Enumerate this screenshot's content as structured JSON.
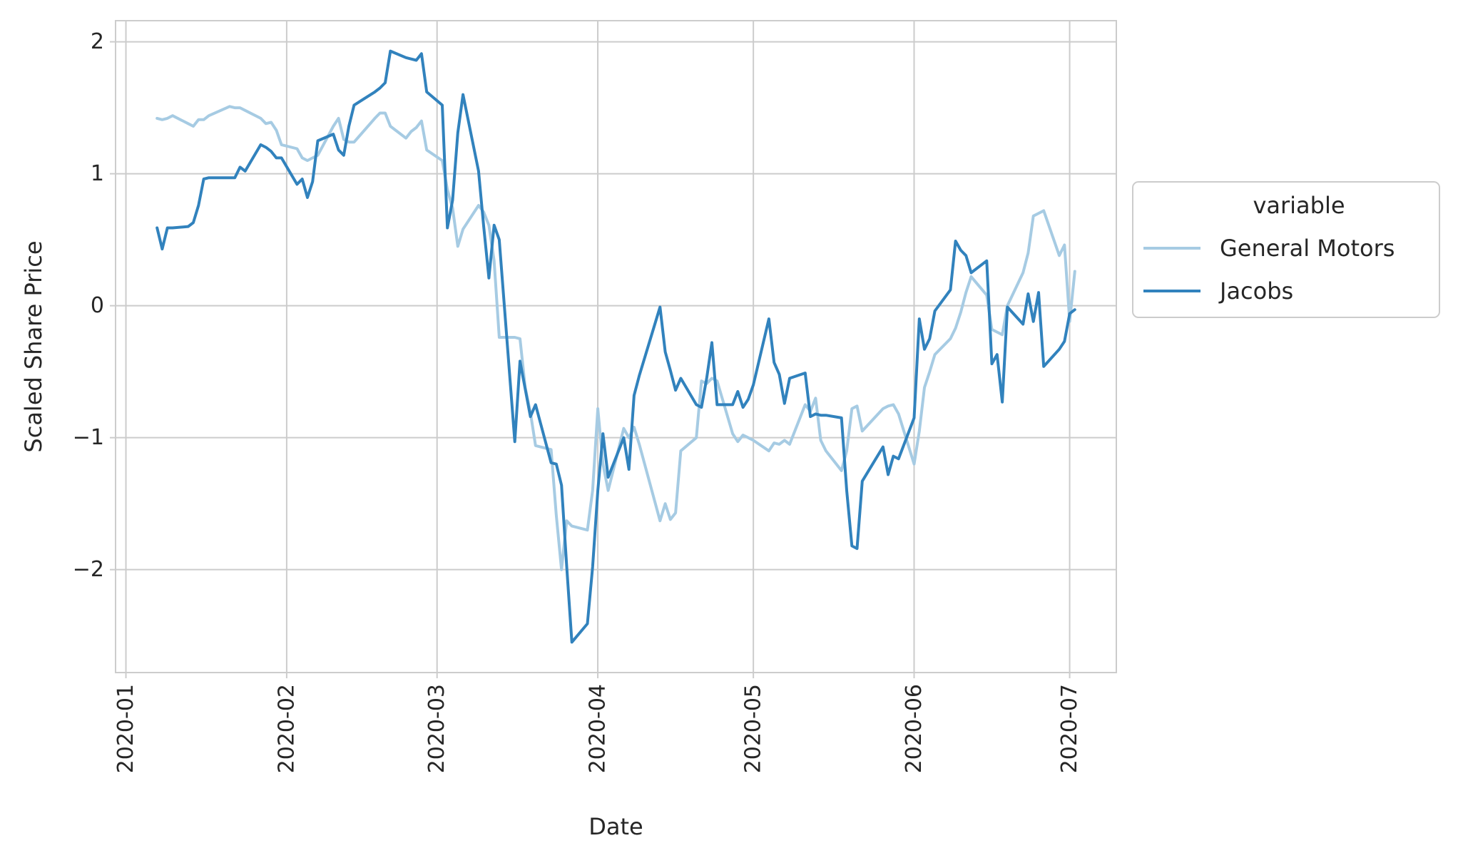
{
  "chart_data": {
    "type": "line",
    "xlabel": "Date",
    "ylabel": "Scaled Share Price",
    "x_ticks": [
      "2020-01",
      "2020-02",
      "2020-03",
      "2020-04",
      "2020-05",
      "2020-06",
      "2020-07"
    ],
    "y_ticks": [
      "−2",
      "−1",
      "0",
      "1",
      "2"
    ],
    "xlim": [
      "2019-12-30",
      "2020-07-10"
    ],
    "ylim": [
      -2.78,
      2.16
    ],
    "grid": true,
    "legend": {
      "title": "variable",
      "placement": "right-outside",
      "entries": [
        "General Motors",
        "Jacobs"
      ]
    },
    "series": [
      {
        "name": "General Motors",
        "color": "#a6cbe3",
        "points": [
          [
            "2020-01-07",
            1.42
          ],
          [
            "2020-01-08",
            1.41
          ],
          [
            "2020-01-09",
            1.42
          ],
          [
            "2020-01-10",
            1.44
          ],
          [
            "2020-01-13",
            1.38
          ],
          [
            "2020-01-14",
            1.36
          ],
          [
            "2020-01-15",
            1.41
          ],
          [
            "2020-01-16",
            1.41
          ],
          [
            "2020-01-17",
            1.44
          ],
          [
            "2020-01-21",
            1.51
          ],
          [
            "2020-01-22",
            1.5
          ],
          [
            "2020-01-23",
            1.5
          ],
          [
            "2020-01-24",
            1.48
          ],
          [
            "2020-01-27",
            1.42
          ],
          [
            "2020-01-28",
            1.38
          ],
          [
            "2020-01-29",
            1.39
          ],
          [
            "2020-01-30",
            1.33
          ],
          [
            "2020-01-31",
            1.22
          ],
          [
            "2020-02-03",
            1.19
          ],
          [
            "2020-02-04",
            1.12
          ],
          [
            "2020-02-05",
            1.1
          ],
          [
            "2020-02-06",
            1.12
          ],
          [
            "2020-02-07",
            1.14
          ],
          [
            "2020-02-10",
            1.36
          ],
          [
            "2020-02-11",
            1.42
          ],
          [
            "2020-02-12",
            1.26
          ],
          [
            "2020-02-13",
            1.24
          ],
          [
            "2020-02-14",
            1.24
          ],
          [
            "2020-02-18",
            1.42
          ],
          [
            "2020-02-19",
            1.46
          ],
          [
            "2020-02-20",
            1.46
          ],
          [
            "2020-02-21",
            1.36
          ],
          [
            "2020-02-24",
            1.27
          ],
          [
            "2020-02-25",
            1.32
          ],
          [
            "2020-02-26",
            1.35
          ],
          [
            "2020-02-27",
            1.4
          ],
          [
            "2020-02-28",
            1.18
          ],
          [
            "2020-03-02",
            1.1
          ],
          [
            "2020-03-03",
            0.88
          ],
          [
            "2020-03-04",
            0.74
          ],
          [
            "2020-03-05",
            0.45
          ],
          [
            "2020-03-06",
            0.58
          ],
          [
            "2020-03-09",
            0.76
          ],
          [
            "2020-03-10",
            0.71
          ],
          [
            "2020-03-11",
            0.61
          ],
          [
            "2020-03-12",
            0.34
          ],
          [
            "2020-03-13",
            -0.24
          ],
          [
            "2020-03-16",
            -0.24
          ],
          [
            "2020-03-17",
            -0.25
          ],
          [
            "2020-03-18",
            -0.62
          ],
          [
            "2020-03-19",
            -0.81
          ],
          [
            "2020-03-20",
            -1.06
          ],
          [
            "2020-03-23",
            -1.09
          ],
          [
            "2020-03-24",
            -1.59
          ],
          [
            "2020-03-25",
            -2.0
          ],
          [
            "2020-03-26",
            -1.63
          ],
          [
            "2020-03-27",
            -1.67
          ],
          [
            "2020-03-30",
            -1.7
          ],
          [
            "2020-03-31",
            -1.4
          ],
          [
            "2020-04-01",
            -0.78
          ],
          [
            "2020-04-02",
            -1.2
          ],
          [
            "2020-04-03",
            -1.4
          ],
          [
            "2020-04-06",
            -0.93
          ],
          [
            "2020-04-07",
            -1.0
          ],
          [
            "2020-04-08",
            -0.92
          ],
          [
            "2020-04-09",
            -1.05
          ],
          [
            "2020-04-13",
            -1.63
          ],
          [
            "2020-04-14",
            -1.5
          ],
          [
            "2020-04-15",
            -1.62
          ],
          [
            "2020-04-16",
            -1.57
          ],
          [
            "2020-04-17",
            -1.1
          ],
          [
            "2020-04-20",
            -1.0
          ],
          [
            "2020-04-21",
            -0.57
          ],
          [
            "2020-04-22",
            -0.59
          ],
          [
            "2020-04-23",
            -0.55
          ],
          [
            "2020-04-24",
            -0.57
          ],
          [
            "2020-04-27",
            -0.97
          ],
          [
            "2020-04-28",
            -1.03
          ],
          [
            "2020-04-29",
            -0.98
          ],
          [
            "2020-04-30",
            -1.0
          ],
          [
            "2020-05-01",
            -1.02
          ],
          [
            "2020-05-04",
            -1.1
          ],
          [
            "2020-05-05",
            -1.04
          ],
          [
            "2020-05-06",
            -1.05
          ],
          [
            "2020-05-07",
            -1.02
          ],
          [
            "2020-05-08",
            -1.05
          ],
          [
            "2020-05-11",
            -0.75
          ],
          [
            "2020-05-12",
            -0.8
          ],
          [
            "2020-05-13",
            -0.7
          ],
          [
            "2020-05-14",
            -1.02
          ],
          [
            "2020-05-15",
            -1.1
          ],
          [
            "2020-05-18",
            -1.25
          ],
          [
            "2020-05-19",
            -1.1
          ],
          [
            "2020-05-20",
            -0.78
          ],
          [
            "2020-05-21",
            -0.76
          ],
          [
            "2020-05-22",
            -0.95
          ],
          [
            "2020-05-26",
            -0.78
          ],
          [
            "2020-05-27",
            -0.76
          ],
          [
            "2020-05-28",
            -0.75
          ],
          [
            "2020-05-29",
            -0.82
          ],
          [
            "2020-06-01",
            -1.2
          ],
          [
            "2020-06-02",
            -0.95
          ],
          [
            "2020-06-03",
            -0.62
          ],
          [
            "2020-06-04",
            -0.5
          ],
          [
            "2020-06-05",
            -0.37
          ],
          [
            "2020-06-08",
            -0.25
          ],
          [
            "2020-06-09",
            -0.17
          ],
          [
            "2020-06-10",
            -0.05
          ],
          [
            "2020-06-11",
            0.1
          ],
          [
            "2020-06-12",
            0.22
          ],
          [
            "2020-06-15",
            0.08
          ],
          [
            "2020-06-16",
            -0.18
          ],
          [
            "2020-06-17",
            -0.2
          ],
          [
            "2020-06-18",
            -0.22
          ],
          [
            "2020-06-19",
            0.0
          ],
          [
            "2020-06-22",
            0.25
          ],
          [
            "2020-06-23",
            0.4
          ],
          [
            "2020-06-24",
            0.68
          ],
          [
            "2020-06-25",
            0.7
          ],
          [
            "2020-06-26",
            0.72
          ],
          [
            "2020-06-29",
            0.38
          ],
          [
            "2020-06-30",
            0.46
          ],
          [
            "2020-07-01",
            -0.12
          ],
          [
            "2020-07-02",
            0.26
          ]
        ]
      },
      {
        "name": "Jacobs",
        "color": "#3182bd",
        "points": [
          [
            "2020-01-07",
            0.59
          ],
          [
            "2020-01-08",
            0.43
          ],
          [
            "2020-01-09",
            0.59
          ],
          [
            "2020-01-10",
            0.59
          ],
          [
            "2020-01-13",
            0.6
          ],
          [
            "2020-01-14",
            0.63
          ],
          [
            "2020-01-15",
            0.76
          ],
          [
            "2020-01-16",
            0.96
          ],
          [
            "2020-01-17",
            0.97
          ],
          [
            "2020-01-21",
            0.97
          ],
          [
            "2020-01-22",
            0.97
          ],
          [
            "2020-01-23",
            1.05
          ],
          [
            "2020-01-24",
            1.02
          ],
          [
            "2020-01-27",
            1.22
          ],
          [
            "2020-01-28",
            1.2
          ],
          [
            "2020-01-29",
            1.17
          ],
          [
            "2020-01-30",
            1.12
          ],
          [
            "2020-01-31",
            1.12
          ],
          [
            "2020-02-03",
            0.92
          ],
          [
            "2020-02-04",
            0.96
          ],
          [
            "2020-02-05",
            0.82
          ],
          [
            "2020-02-06",
            0.94
          ],
          [
            "2020-02-07",
            1.25
          ],
          [
            "2020-02-10",
            1.3
          ],
          [
            "2020-02-11",
            1.18
          ],
          [
            "2020-02-12",
            1.14
          ],
          [
            "2020-02-13",
            1.36
          ],
          [
            "2020-02-14",
            1.52
          ],
          [
            "2020-02-18",
            1.62
          ],
          [
            "2020-02-19",
            1.65
          ],
          [
            "2020-02-20",
            1.69
          ],
          [
            "2020-02-21",
            1.93
          ],
          [
            "2020-02-24",
            1.88
          ],
          [
            "2020-02-25",
            1.87
          ],
          [
            "2020-02-26",
            1.86
          ],
          [
            "2020-02-27",
            1.91
          ],
          [
            "2020-02-28",
            1.62
          ],
          [
            "2020-03-02",
            1.52
          ],
          [
            "2020-03-03",
            0.59
          ],
          [
            "2020-03-04",
            0.8
          ],
          [
            "2020-03-05",
            1.31
          ],
          [
            "2020-03-06",
            1.6
          ],
          [
            "2020-03-09",
            1.02
          ],
          [
            "2020-03-10",
            0.6
          ],
          [
            "2020-03-11",
            0.21
          ],
          [
            "2020-03-12",
            0.61
          ],
          [
            "2020-03-13",
            0.5
          ],
          [
            "2020-03-16",
            -1.03
          ],
          [
            "2020-03-17",
            -0.42
          ],
          [
            "2020-03-18",
            -0.63
          ],
          [
            "2020-03-19",
            -0.84
          ],
          [
            "2020-03-20",
            -0.75
          ],
          [
            "2020-03-23",
            -1.19
          ],
          [
            "2020-03-24",
            -1.2
          ],
          [
            "2020-03-25",
            -1.36
          ],
          [
            "2020-03-26",
            -1.97
          ],
          [
            "2020-03-27",
            -2.55
          ],
          [
            "2020-03-30",
            -2.41
          ],
          [
            "2020-03-31",
            -1.98
          ],
          [
            "2020-04-01",
            -1.4
          ],
          [
            "2020-04-02",
            -0.97
          ],
          [
            "2020-04-03",
            -1.3
          ],
          [
            "2020-04-06",
            -1.0
          ],
          [
            "2020-04-07",
            -1.24
          ],
          [
            "2020-04-08",
            -0.68
          ],
          [
            "2020-04-09",
            -0.53
          ],
          [
            "2020-04-13",
            -0.01
          ],
          [
            "2020-04-14",
            -0.35
          ],
          [
            "2020-04-15",
            -0.49
          ],
          [
            "2020-04-16",
            -0.64
          ],
          [
            "2020-04-17",
            -0.55
          ],
          [
            "2020-04-20",
            -0.75
          ],
          [
            "2020-04-21",
            -0.77
          ],
          [
            "2020-04-22",
            -0.55
          ],
          [
            "2020-04-23",
            -0.28
          ],
          [
            "2020-04-24",
            -0.75
          ],
          [
            "2020-04-27",
            -0.75
          ],
          [
            "2020-04-28",
            -0.65
          ],
          [
            "2020-04-29",
            -0.77
          ],
          [
            "2020-04-30",
            -0.71
          ],
          [
            "2020-05-01",
            -0.6
          ],
          [
            "2020-05-04",
            -0.1
          ],
          [
            "2020-05-05",
            -0.43
          ],
          [
            "2020-05-06",
            -0.52
          ],
          [
            "2020-05-07",
            -0.74
          ],
          [
            "2020-05-08",
            -0.55
          ],
          [
            "2020-05-11",
            -0.51
          ],
          [
            "2020-05-12",
            -0.84
          ],
          [
            "2020-05-13",
            -0.82
          ],
          [
            "2020-05-14",
            -0.83
          ],
          [
            "2020-05-15",
            -0.83
          ],
          [
            "2020-05-18",
            -0.85
          ],
          [
            "2020-05-19",
            -1.4
          ],
          [
            "2020-05-20",
            -1.82
          ],
          [
            "2020-05-21",
            -1.84
          ],
          [
            "2020-05-22",
            -1.33
          ],
          [
            "2020-05-26",
            -1.07
          ],
          [
            "2020-05-27",
            -1.28
          ],
          [
            "2020-05-28",
            -1.14
          ],
          [
            "2020-05-29",
            -1.16
          ],
          [
            "2020-06-01",
            -0.85
          ],
          [
            "2020-06-02",
            -0.1
          ],
          [
            "2020-06-03",
            -0.33
          ],
          [
            "2020-06-04",
            -0.25
          ],
          [
            "2020-06-05",
            -0.04
          ],
          [
            "2020-06-08",
            0.12
          ],
          [
            "2020-06-09",
            0.49
          ],
          [
            "2020-06-10",
            0.42
          ],
          [
            "2020-06-11",
            0.38
          ],
          [
            "2020-06-12",
            0.25
          ],
          [
            "2020-06-15",
            0.34
          ],
          [
            "2020-06-16",
            -0.44
          ],
          [
            "2020-06-17",
            -0.37
          ],
          [
            "2020-06-18",
            -0.73
          ],
          [
            "2020-06-19",
            -0.01
          ],
          [
            "2020-06-22",
            -0.14
          ],
          [
            "2020-06-23",
            0.09
          ],
          [
            "2020-06-24",
            -0.12
          ],
          [
            "2020-06-25",
            0.1
          ],
          [
            "2020-06-26",
            -0.46
          ],
          [
            "2020-06-29",
            -0.33
          ],
          [
            "2020-06-30",
            -0.27
          ],
          [
            "2020-07-01",
            -0.06
          ],
          [
            "2020-07-02",
            -0.03
          ]
        ]
      }
    ]
  }
}
